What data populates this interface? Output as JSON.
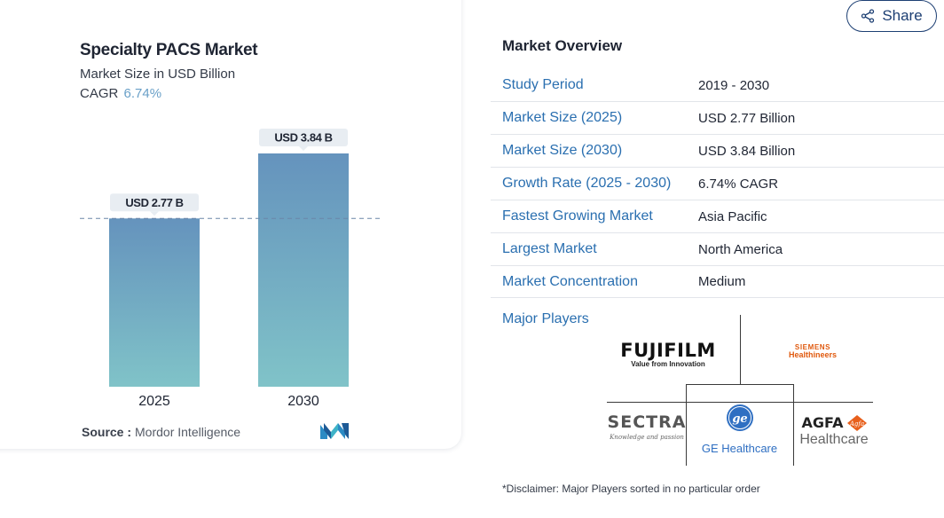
{
  "share": {
    "label": "Share"
  },
  "chart": {
    "title": "Specialty PACS Market",
    "subtitle": "Market Size in USD Billion",
    "cagr_label": "CAGR",
    "cagr_value": "6.74%",
    "source_label": "Source :",
    "source_value": "Mordor Intelligence"
  },
  "chart_data": {
    "type": "bar",
    "title": "Specialty PACS Market",
    "subtitle": "Market Size in USD Billion",
    "categories": [
      "2025",
      "2030"
    ],
    "values": [
      2.77,
      3.84
    ],
    "data_labels": [
      "USD 2.77 B",
      "USD 3.84 B"
    ],
    "reference_line": 2.77,
    "ylim": [
      0,
      3.84
    ],
    "xlabel": "",
    "ylabel": "",
    "grid": false,
    "colors": {
      "bar_top": "#6593bd",
      "bar_bottom": "#80c3c8",
      "label_bg": "#e8edf2",
      "ref_line": "#6b86a8"
    }
  },
  "overview": {
    "title": "Market Overview",
    "rows": [
      {
        "label": "Study Period",
        "value": "2019 - 2030"
      },
      {
        "label": "Market Size (2025)",
        "value": "USD 2.77 Billion"
      },
      {
        "label": "Market Size (2030)",
        "value": "USD 3.84 Billion"
      },
      {
        "label": "Growth Rate (2025 - 2030)",
        "value": "6.74% CAGR"
      },
      {
        "label": "Fastest Growing Market",
        "value": "Asia Pacific"
      },
      {
        "label": "Largest Market",
        "value": "North America"
      },
      {
        "label": "Market Concentration",
        "value": "Medium"
      }
    ],
    "major_players_label": "Major Players",
    "players": {
      "fujifilm": {
        "name": "FUJIFILM",
        "tagline": "Value from Innovation"
      },
      "siemens": {
        "line1": "SIEMENS",
        "line2": "Healthineers"
      },
      "sectra": {
        "name": "SECTRA",
        "tagline": "Knowledge and passion"
      },
      "ge": {
        "name": "GE Healthcare"
      },
      "agfa": {
        "name": "AGFA",
        "line2": "Healthcare"
      }
    },
    "disclaimer": "*Disclaimer: Major Players sorted in no particular order"
  }
}
